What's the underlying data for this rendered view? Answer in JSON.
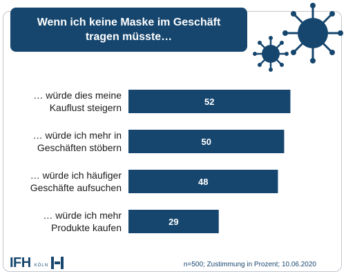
{
  "title": "Wenn ich keine Maske im Geschäft tragen müsste…",
  "colors": {
    "bar": "#16466e",
    "title_bg": "#16466e",
    "virus": "#16466e"
  },
  "icons": {
    "decor": [
      "virus-icon-large",
      "virus-icon-small"
    ]
  },
  "logo": {
    "main": "IFH",
    "sub": "KÖLN"
  },
  "footnote": "n=500; Zustimmung in Prozent; 10.06.2020",
  "chart_data": {
    "type": "bar",
    "orientation": "horizontal",
    "title": "Wenn ich keine Maske im Geschäft tragen müsste…",
    "categories": [
      [
        "… würde dies meine",
        "Kauflust steigern"
      ],
      [
        "… würde ich mehr in",
        "Geschäften stöbern"
      ],
      [
        "… würde ich häufiger",
        "Geschäfte aufsuchen"
      ],
      [
        "… würde ich mehr",
        "Produkte kaufen"
      ]
    ],
    "values": [
      52,
      50,
      48,
      29
    ],
    "xlim": [
      0,
      55
    ],
    "grid": false,
    "legend": "none"
  }
}
